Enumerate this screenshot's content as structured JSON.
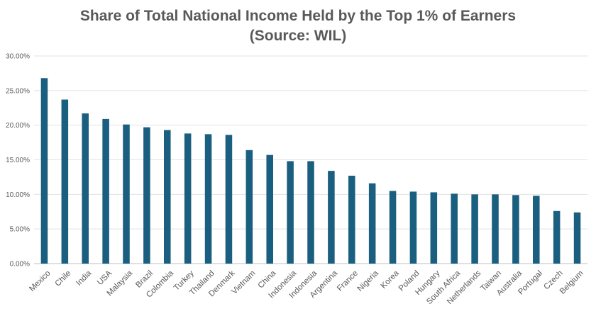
{
  "chart_data": {
    "type": "bar",
    "title": "Share of Total National Income Held by the Top 1% of Earners",
    "subtitle": "(Source: WIL)",
    "xlabel": "",
    "ylabel": "",
    "ylim": [
      0,
      0.3
    ],
    "yticks": [
      "0.00%",
      "5.00%",
      "10.00%",
      "15.00%",
      "20.00%",
      "25.00%",
      "30.00%"
    ],
    "grid": true,
    "bar_color": "#1a5f7f",
    "categories": [
      "Mexico",
      "Chile",
      "India",
      "USA",
      "Malaysia",
      "Brazil",
      "Colombia",
      "Turkey",
      "Thailand",
      "Denmark",
      "Vietnam",
      "China",
      "Indonesia",
      "Indonesia",
      "Argentina",
      "France",
      "Nigeria",
      "Korea",
      "Poland",
      "Hungary",
      "South Africa",
      "Netherlands",
      "Taiwan",
      "Australia",
      "Portugal",
      "Czech",
      "Belgium"
    ],
    "values": [
      0.268,
      0.237,
      0.217,
      0.209,
      0.201,
      0.197,
      0.193,
      0.188,
      0.187,
      0.186,
      0.164,
      0.157,
      0.148,
      0.148,
      0.134,
      0.127,
      0.116,
      0.105,
      0.104,
      0.103,
      0.101,
      0.1,
      0.1,
      0.099,
      0.098,
      0.076,
      0.074
    ]
  }
}
